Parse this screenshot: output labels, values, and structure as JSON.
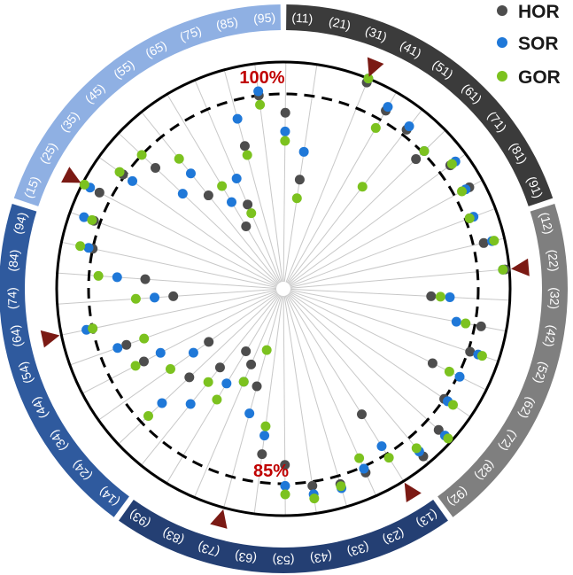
{
  "chart_data": {
    "type": "radial-scatter",
    "title": "",
    "rings": {
      "outer_label": "100%",
      "inner_label": "85%",
      "outer_value": 100,
      "inner_value": 85,
      "center_value": 65
    },
    "legend": [
      {
        "name": "HOR",
        "color": "#4d4d4d"
      },
      {
        "name": "SOR",
        "color": "#1f78d8"
      },
      {
        "name": "GOR",
        "color": "#7cc21f"
      }
    ],
    "spoke_color": "#c8c8c8",
    "arrow_color": "#7b1a14",
    "groups": [
      {
        "color": "#3b3b3b",
        "labels": [
          "(11)",
          "(21)",
          "(31)",
          "(41)",
          "(51)",
          "(61)",
          "(71)",
          "(81)",
          "(91)"
        ]
      },
      {
        "color": "#7f7f7f",
        "labels": [
          "(12)",
          "(22)",
          "(32)",
          "(42)",
          "(52)",
          "(62)",
          "(72)",
          "(82)",
          "(92)"
        ]
      },
      {
        "color": "#243f73",
        "labels": [
          "(13)",
          "(23)",
          "(33)",
          "(43)",
          "(53)",
          "(63)",
          "(73)",
          "(83)",
          "(93)"
        ]
      },
      {
        "color": "#2f5a9e",
        "labels": [
          "(14)",
          "(24)",
          "(34)",
          "(44)",
          "(54)",
          "(64)",
          "(74)",
          "(84)",
          "(94)"
        ]
      },
      {
        "color": "#8fb0e3",
        "labels": [
          "(15)",
          "(25)",
          "(35)",
          "(45)",
          "(55)",
          "(65)",
          "(75)",
          "(85)",
          "(95)"
        ]
      }
    ],
    "arrow_categories": [
      0,
      8,
      16,
      22,
      30,
      35
    ],
    "series": [
      {
        "name": "HOR",
        "values": [
          98,
          90,
          88,
          84,
          91,
          93,
          87,
          90,
          98,
          80,
          88,
          86,
          82,
          85,
          92,
          96,
          80,
          88,
          89,
          87,
          83,
          82,
          75,
          73,
          72,
          75,
          78,
          74,
          81,
          82,
          85,
          76,
          79,
          85,
          88,
          91,
          86,
          83,
          77,
          72,
          74,
          80,
          85,
          83,
          76
        ]
      },
      {
        "name": "SOR",
        "values": [
          100,
          92,
          90,
          86,
          94,
          91,
          89,
          94,
          97,
          82,
          83,
          90,
          86,
          87,
          96,
          93,
          84,
          86,
          91,
          91,
          86,
          80,
          78,
          75,
          76,
          80,
          82,
          76,
          79,
          83,
          88,
          78,
          82,
          87,
          93,
          96,
          84,
          79,
          80,
          75,
          77,
          83,
          87,
          81,
          79
        ]
      },
      {
        "name": "GOR",
        "values": [
          100,
          84,
          78,
          86,
          92,
          89,
          87,
          95,
          97,
          81,
          84,
          92,
          84,
          90,
          98,
          91,
          87,
          84,
          90,
          93,
          90,
          79,
          71,
          75,
          78,
          77,
          84,
          79,
          82,
          80,
          85,
          80,
          84,
          91,
          89,
          99,
          88,
          85,
          82,
          77,
          73,
          79,
          84,
          80,
          74
        ]
      }
    ]
  }
}
